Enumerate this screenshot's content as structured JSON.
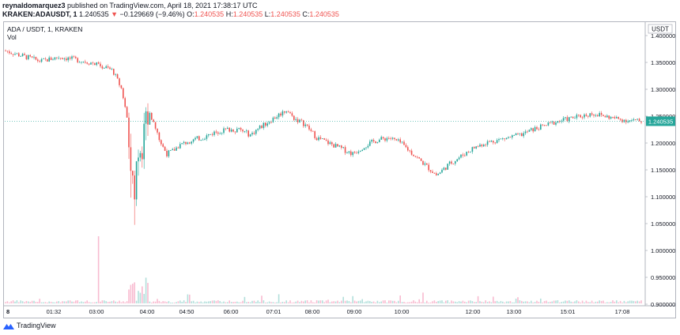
{
  "header": {
    "username": "reynaldomarquez3",
    "published_text": "published on TradingView.com, April 18, 2021 17:38:17 UTC"
  },
  "ticker": {
    "symbol": "KRAKEN:ADAUSDT, 1",
    "last": "1.240535",
    "arrow": "▼",
    "change": "−0.129669 (−9.46%)",
    "o_label": "O:",
    "o_value": "1.240535",
    "h_label": "H:",
    "h_value": "1.240535",
    "l_label": "L:",
    "l_value": "1.240535",
    "c_label": "C:",
    "c_value": "1.240535"
  },
  "legend": {
    "title": "ADA / USDT, 1, KRAKEN",
    "vol": "Vol"
  },
  "footer": {
    "brand": "TradingView"
  },
  "colors": {
    "up": "#26a69a",
    "down": "#ef5350",
    "up_vol": "#b2dfdb",
    "down_vol": "#f8bbd0",
    "price_line": "#26a69a"
  },
  "chart_data": {
    "type": "candlestick",
    "title": "ADA / USDT, 1, KRAKEN",
    "currency": "USDT",
    "ylim": [
      0.9,
      1.4
    ],
    "y_ticks": [
      "1.400000",
      "1.350000",
      "1.300000",
      "1.250000",
      "1.200000",
      "1.150000",
      "1.100000",
      "1.050000",
      "1.000000",
      "0.950000",
      "0.900000"
    ],
    "x_ticks": [
      "8",
      "01:32",
      "03:00",
      "04:00",
      "04:50",
      "06:00",
      "07:01",
      "08:00",
      "09:00",
      "10:00",
      "12:00",
      "13:00",
      "15:01",
      "17:08"
    ],
    "last_price": "1.240535",
    "series": [
      {
        "name": "price",
        "x": [
          "00:00",
          "00:30",
          "01:00",
          "01:30",
          "02:00",
          "02:30",
          "03:00",
          "03:15",
          "03:25",
          "03:30",
          "03:35",
          "03:40",
          "03:45",
          "03:50",
          "03:55",
          "04:00",
          "04:10",
          "04:20",
          "04:30",
          "04:40",
          "04:50",
          "05:10",
          "05:30",
          "05:50",
          "06:10",
          "06:30",
          "06:50",
          "07:00",
          "07:20",
          "07:40",
          "07:50",
          "08:00",
          "08:20",
          "08:40",
          "09:00",
          "09:20",
          "09:40",
          "10:00",
          "10:20",
          "10:40",
          "11:00",
          "11:20",
          "11:40",
          "12:00",
          "12:10",
          "12:20",
          "12:40",
          "13:00",
          "13:20",
          "13:40",
          "14:00",
          "14:20",
          "14:40",
          "15:00",
          "15:20",
          "15:40",
          "16:00",
          "16:20",
          "16:40",
          "17:00",
          "17:20",
          "17:38"
        ],
        "y": [
          1.372,
          1.362,
          1.352,
          1.36,
          1.355,
          1.348,
          1.335,
          1.3,
          1.24,
          1.18,
          1.08,
          1.16,
          1.21,
          1.19,
          1.24,
          1.265,
          1.23,
          1.2,
          1.18,
          1.185,
          1.195,
          1.205,
          1.21,
          1.22,
          1.225,
          1.225,
          1.215,
          1.225,
          1.24,
          1.255,
          1.262,
          1.248,
          1.235,
          1.21,
          1.2,
          1.19,
          1.18,
          1.195,
          1.205,
          1.21,
          1.2,
          1.18,
          1.16,
          1.14,
          1.15,
          1.16,
          1.175,
          1.19,
          1.2,
          1.205,
          1.21,
          1.215,
          1.225,
          1.232,
          1.24,
          1.245,
          1.25,
          1.255,
          1.25,
          1.245,
          1.242,
          1.240535
        ]
      }
    ]
  }
}
